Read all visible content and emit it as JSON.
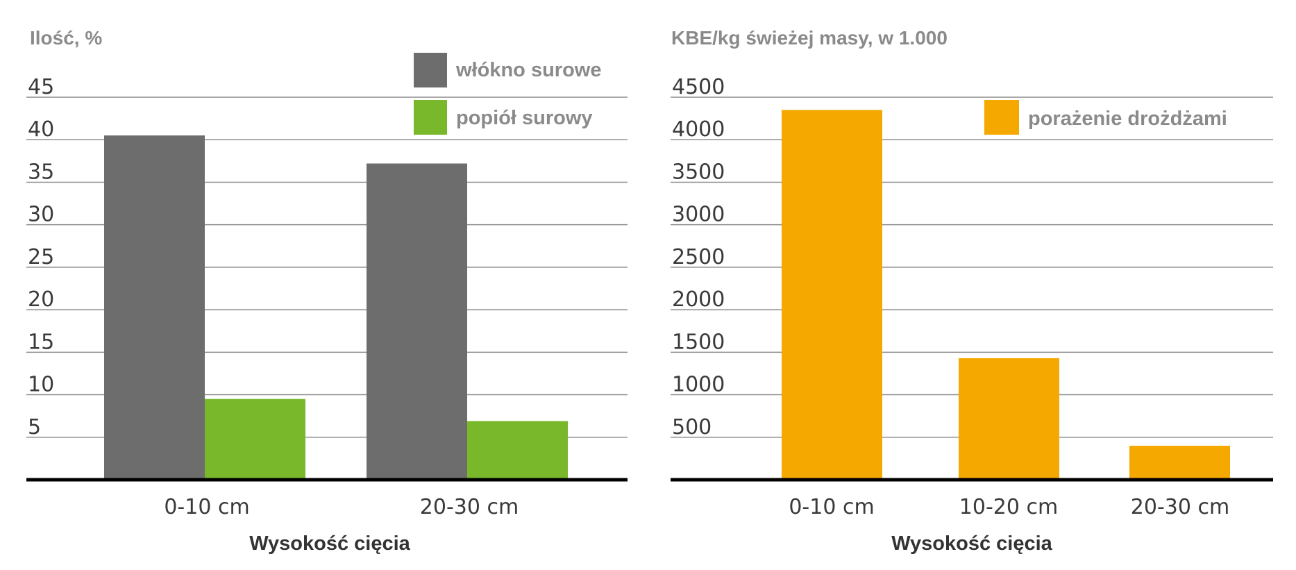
{
  "chart_data": [
    {
      "type": "bar",
      "title": "",
      "ylabel": "Ilość, %",
      "xlabel": "Wysokość cięcia",
      "ylim": [
        0,
        45
      ],
      "yticks": [
        "5",
        "10",
        "15",
        "20",
        "25",
        "30",
        "35",
        "40",
        "45"
      ],
      "categories": [
        "0-10 cm",
        "20-30 cm"
      ],
      "series": [
        {
          "name": "włókno surowe",
          "color": "#6d6d6d",
          "values": [
            40.5,
            37.2
          ]
        },
        {
          "name": "popiół surowy",
          "color": "#78b82a",
          "values": [
            9.5,
            6.9
          ]
        }
      ],
      "grid": true,
      "legend": "top-right"
    },
    {
      "type": "bar",
      "title": "",
      "ylabel": "KBE/kg świeżej masy, w 1.000",
      "xlabel": "Wysokość cięcia",
      "ylim": [
        0,
        4500
      ],
      "yticks": [
        "500",
        "1000",
        "1500",
        "2000",
        "2500",
        "3000",
        "3500",
        "4000",
        "4500"
      ],
      "categories": [
        "0-10 cm",
        "10-20 cm",
        "20-30 cm"
      ],
      "series": [
        {
          "name": "porażenie drożdżami",
          "color": "#f5a800",
          "values": [
            4350,
            1430,
            400
          ]
        }
      ],
      "grid": true,
      "legend": "top-right"
    }
  ]
}
